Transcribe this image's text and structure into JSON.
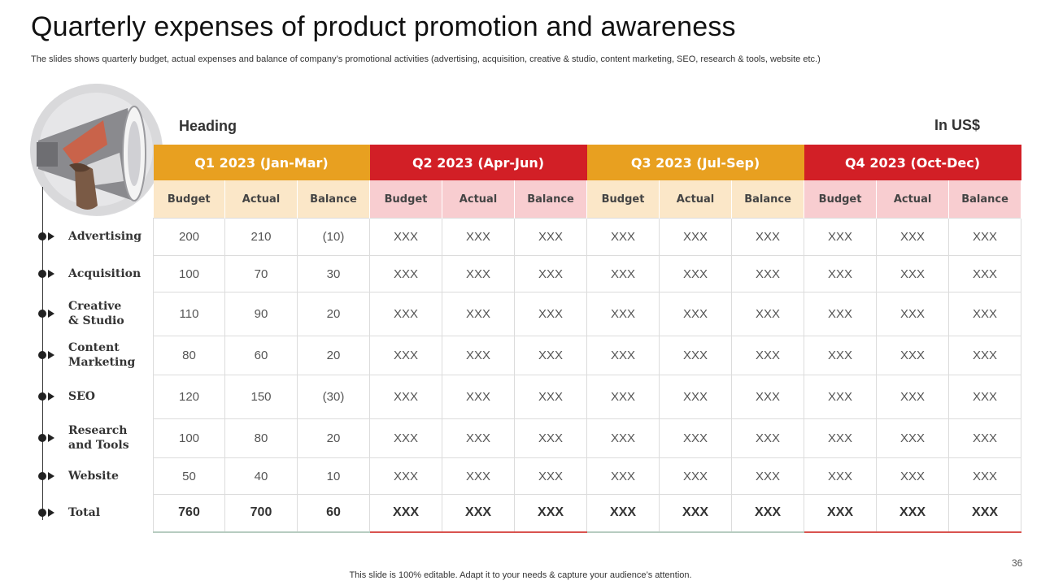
{
  "slide": {
    "title": "Quarterly expenses of product promotion and awareness",
    "subtitle": "The slides shows quarterly budget, actual expenses and balance of company’s promotional activities (advertising, acquisition, creative & studio, content marketing, SEO, research & tools, website etc.)",
    "heading_label": "Heading",
    "unit_label": "In US$",
    "page_number": "36",
    "footer": "This slide is 100% editable. Adapt it to your needs & capture your audience’s attention."
  },
  "colors": {
    "orange": "#e8a020",
    "red": "#d21f26",
    "orange_light": "#fbe7c8",
    "red_light": "#f8cdd0"
  },
  "icons": {
    "illustration": "megaphone-hand-icon",
    "bullet": "bullet-arrow-icon"
  },
  "table": {
    "quarters": [
      {
        "label": "Q1 2023 (Jan-Mar)",
        "color": "orange"
      },
      {
        "label": "Q2 2023 (Apr-Jun)",
        "color": "red"
      },
      {
        "label": "Q3 2023 (Jul-Sep)",
        "color": "orange"
      },
      {
        "label": "Q4 2023 (Oct-Dec)",
        "color": "red"
      }
    ],
    "subcolumns": [
      "Budget",
      "Actual",
      "Balance"
    ],
    "rows": [
      {
        "label": "Advertising",
        "values": [
          "200",
          "210",
          "(10)",
          "XXX",
          "XXX",
          "XXX",
          "XXX",
          "XXX",
          "XXX",
          "XXX",
          "XXX",
          "XXX"
        ]
      },
      {
        "label": "Acquisition",
        "values": [
          "100",
          "70",
          "30",
          "XXX",
          "XXX",
          "XXX",
          "XXX",
          "XXX",
          "XXX",
          "XXX",
          "XXX",
          "XXX"
        ]
      },
      {
        "label": "Creative\n& Studio",
        "values": [
          "110",
          "90",
          "20",
          "XXX",
          "XXX",
          "XXX",
          "XXX",
          "XXX",
          "XXX",
          "XXX",
          "XXX",
          "XXX"
        ]
      },
      {
        "label": "Content\nMarketing",
        "values": [
          "80",
          "60",
          "20",
          "XXX",
          "XXX",
          "XXX",
          "XXX",
          "XXX",
          "XXX",
          "XXX",
          "XXX",
          "XXX"
        ]
      },
      {
        "label": "SEO",
        "values": [
          "120",
          "150",
          "(30)",
          "XXX",
          "XXX",
          "XXX",
          "XXX",
          "XXX",
          "XXX",
          "XXX",
          "XXX",
          "XXX"
        ]
      },
      {
        "label": "Research\nand Tools",
        "values": [
          "100",
          "80",
          "20",
          "XXX",
          "XXX",
          "XXX",
          "XXX",
          "XXX",
          "XXX",
          "XXX",
          "XXX",
          "XXX"
        ]
      },
      {
        "label": "Website",
        "values": [
          "50",
          "40",
          "10",
          "XXX",
          "XXX",
          "XXX",
          "XXX",
          "XXX",
          "XXX",
          "XXX",
          "XXX",
          "XXX"
        ]
      },
      {
        "label": "Total",
        "values": [
          "760",
          "700",
          "60",
          "XXX",
          "XXX",
          "XXX",
          "XXX",
          "XXX",
          "XXX",
          "XXX",
          "XXX",
          "XXX"
        ]
      }
    ]
  }
}
